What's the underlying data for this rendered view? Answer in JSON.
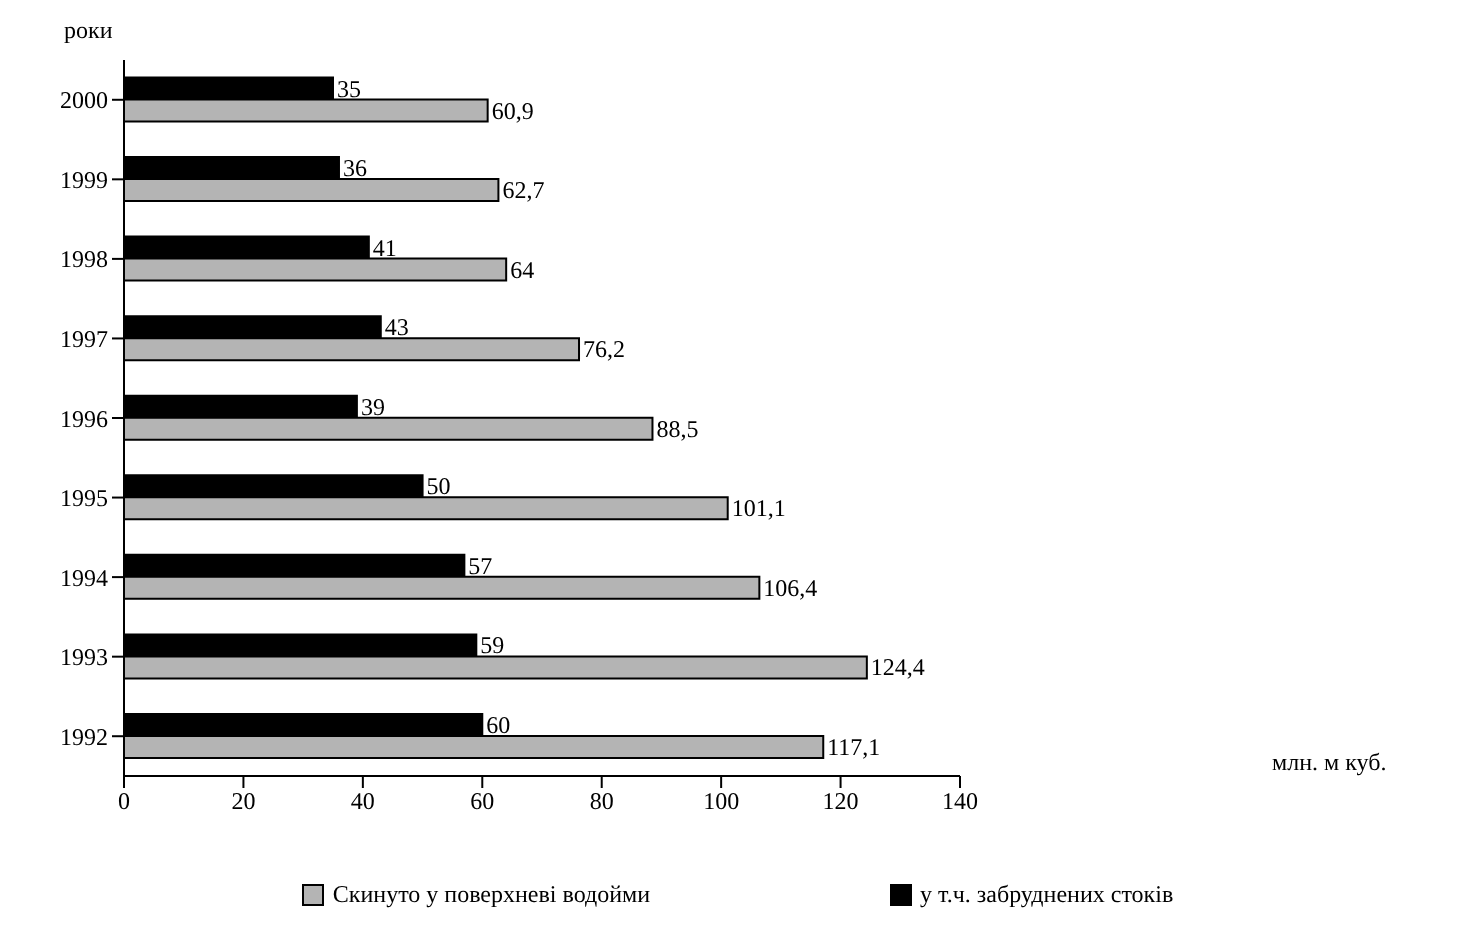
{
  "chart_data": {
    "type": "bar",
    "orientation": "horizontal",
    "categories": [
      "2000",
      "1999",
      "1998",
      "1997",
      "1996",
      "1995",
      "1994",
      "1993",
      "1992"
    ],
    "series": [
      {
        "name": "Скинуто у поверхневі водойми",
        "color": "#b4b4b4",
        "values": [
          60.9,
          62.7,
          64,
          76.2,
          88.5,
          101.1,
          106.4,
          124.4,
          117.1
        ],
        "value_labels": [
          "60,9",
          "62,7",
          "64",
          "76,2",
          "88,5",
          "101,1",
          "106,4",
          "124,4",
          "117,1"
        ]
      },
      {
        "name": "у т.ч. забруднених стоків",
        "color": "#000000",
        "values": [
          35,
          36,
          41,
          43,
          39,
          50,
          57,
          59,
          60
        ],
        "value_labels": [
          "35",
          "36",
          "41",
          "43",
          "39",
          "50",
          "57",
          "59",
          "60"
        ]
      }
    ],
    "xlim": [
      0,
      140
    ],
    "xticks": [
      0,
      20,
      40,
      60,
      80,
      100,
      120,
      140
    ],
    "annotations": [
      "млн. м куб."
    ],
    "ylabel": "роки",
    "legend": "bottom"
  }
}
